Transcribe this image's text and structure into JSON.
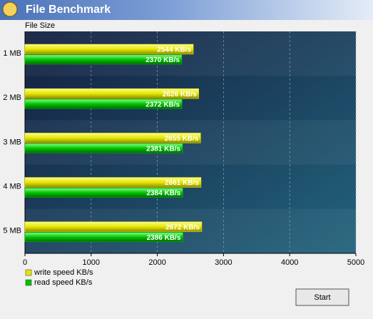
{
  "window": {
    "title": "File Benchmark",
    "button": "Start"
  },
  "chart_data": {
    "type": "bar",
    "orientation": "horizontal",
    "y_axis_label": "File Size",
    "categories": [
      "1 MB",
      "2 MB",
      "3 MB",
      "4 MB",
      "5 MB"
    ],
    "series": [
      {
        "name": "write speed KB/s",
        "color": "#e6e600",
        "values": [
          2544,
          2626,
          2655,
          2661,
          2672
        ],
        "value_labels": [
          "2544 KB/s",
          "2626 KB/s",
          "2655 KB/s",
          "2661 KB/s",
          "2672 KB/s"
        ]
      },
      {
        "name": "read speed KB/s",
        "color": "#00c400",
        "values": [
          2370,
          2372,
          2381,
          2384,
          2386
        ],
        "value_labels": [
          "2370 KB/s",
          "2372 KB/s",
          "2381 KB/s",
          "2384 KB/s",
          "2386 KB/s"
        ]
      }
    ],
    "xlim": [
      0,
      5000
    ],
    "xticks": [
      0,
      1000,
      2000,
      3000,
      4000,
      5000
    ],
    "grid": true
  }
}
